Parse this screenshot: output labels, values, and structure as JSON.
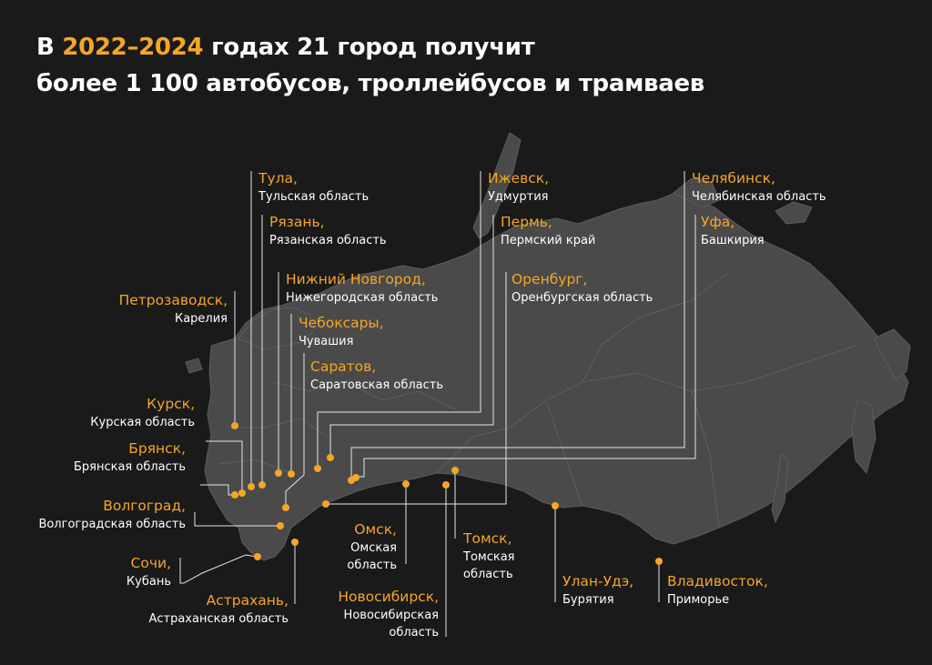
{
  "title": {
    "prefix": "В ",
    "years": "2022–2024",
    "suffix": " годах 21 город получит",
    "line2": "более 1 100 автобусов, троллейбусов и трамваев"
  },
  "colors": {
    "accent": "#f5a623",
    "background": "#1a1a1a",
    "land": "#4a4a4a",
    "text": "#ffffff"
  },
  "cities": [
    {
      "id": "tula",
      "city": "Тула,",
      "region": "Тульская область"
    },
    {
      "id": "ryazan",
      "city": "Рязань,",
      "region": "Рязанская область"
    },
    {
      "id": "nizhny",
      "city": "Нижний Новгород,",
      "region": "Нижегородская область"
    },
    {
      "id": "petrozavodsk",
      "city": "Петрозаводск,",
      "region": "Карелия"
    },
    {
      "id": "cheboksary",
      "city": "Чебоксары,",
      "region": "Чувашия"
    },
    {
      "id": "saratov",
      "city": "Саратов,",
      "region": "Саратовская область"
    },
    {
      "id": "kursk",
      "city": "Курск,",
      "region": "Курская область"
    },
    {
      "id": "bryansk",
      "city": "Брянск,",
      "region": "Брянская область"
    },
    {
      "id": "volgograd",
      "city": "Волгоград,",
      "region": "Волгоградская область"
    },
    {
      "id": "sochi",
      "city": "Сочи,",
      "region": "Кубань"
    },
    {
      "id": "astrakhan",
      "city": "Астрахань,",
      "region": "Астраханская область"
    },
    {
      "id": "izhevsk",
      "city": "Ижевск,",
      "region": "Удмуртия"
    },
    {
      "id": "perm",
      "city": "Пермь,",
      "region": "Пермский край"
    },
    {
      "id": "orenburg",
      "city": "Оренбург,",
      "region": "Оренбургская область"
    },
    {
      "id": "chelyabinsk",
      "city": "Челябинск,",
      "region": "Челябинская область"
    },
    {
      "id": "ufa",
      "city": "Уфа,",
      "region": "Башкирия"
    },
    {
      "id": "omsk",
      "city": "Омск,",
      "region_l1": "Омская",
      "region_l2": "область"
    },
    {
      "id": "tomsk",
      "city": "Томск,",
      "region_l1": "Томская",
      "region_l2": "область"
    },
    {
      "id": "novosibirsk",
      "city": "Новосибирск,",
      "region_l1": "Новосибирская",
      "region_l2": "область"
    },
    {
      "id": "ulan_ude",
      "city": "Улан-Удэ,",
      "region": "Бурятия"
    },
    {
      "id": "vladivostok",
      "city": "Владивосток,",
      "region": "Приморье"
    }
  ]
}
